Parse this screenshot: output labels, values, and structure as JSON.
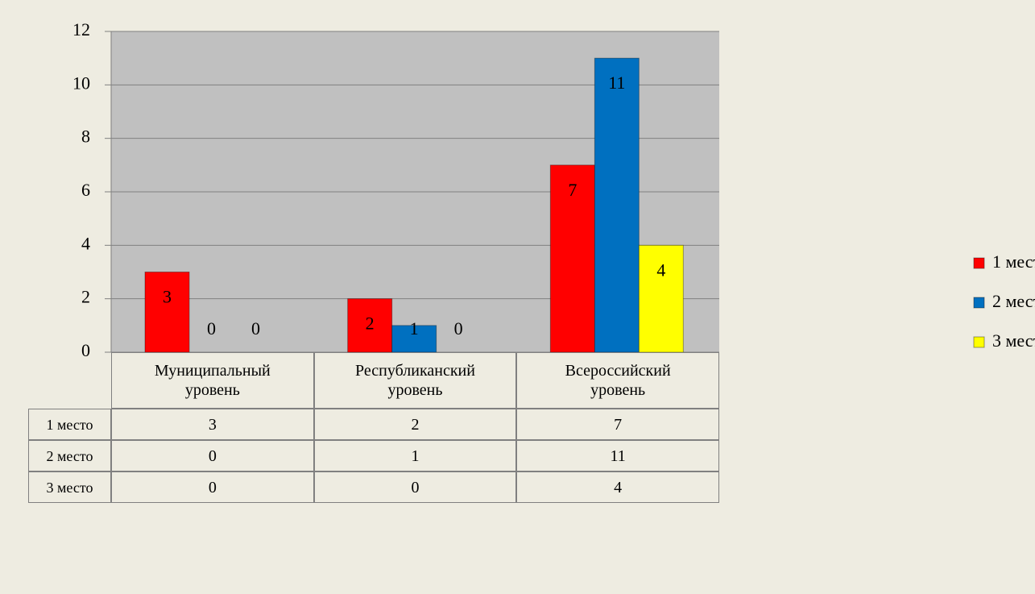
{
  "chart_data": {
    "type": "bar",
    "categories": [
      "Муниципальный уровень",
      "Республиканский уровень",
      "Всероссийский уровень"
    ],
    "series": [
      {
        "name": "1 место",
        "color": "#ff0000",
        "values": [
          3,
          2,
          7
        ]
      },
      {
        "name": "2 место",
        "color": "#0070c0",
        "values": [
          0,
          1,
          11
        ]
      },
      {
        "name": "3 место",
        "color": "#ffff00",
        "values": [
          0,
          0,
          4
        ]
      }
    ],
    "ylim": [
      0,
      12
    ],
    "yticks": [
      0,
      2,
      4,
      6,
      8,
      10,
      12
    ],
    "grid": true,
    "legend": "right",
    "data_table": true
  }
}
